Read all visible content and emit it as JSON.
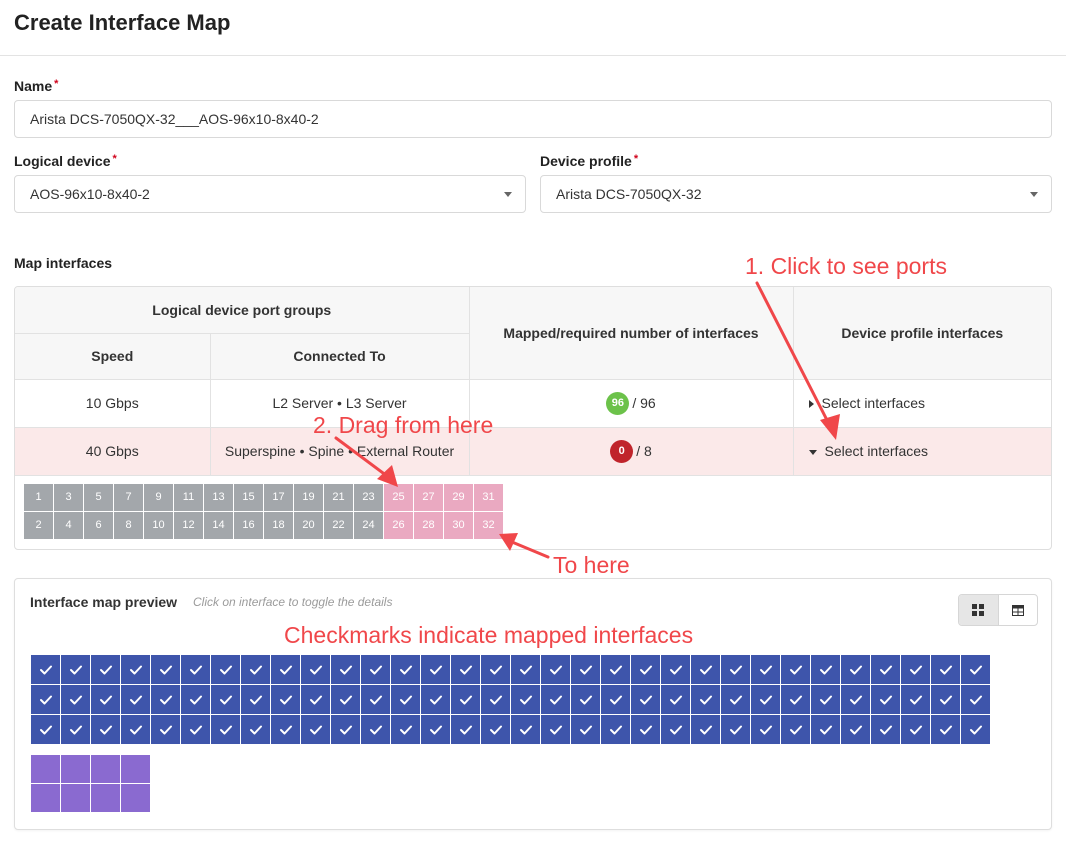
{
  "page": {
    "title": "Create Interface Map"
  },
  "form": {
    "required_mark": "*",
    "name": {
      "label": "Name",
      "value": "Arista DCS-7050QX-32___AOS-96x10-8x40-2"
    },
    "logical_device": {
      "label": "Logical device",
      "value": "AOS-96x10-8x40-2"
    },
    "device_profile": {
      "label": "Device profile",
      "value": "Arista DCS-7050QX-32"
    }
  },
  "map_interfaces": {
    "label": "Map interfaces",
    "headers": {
      "port_groups": "Logical device port groups",
      "speed": "Speed",
      "connected_to": "Connected To",
      "mapped_required": "Mapped/required number of interfaces",
      "device_profile_interfaces": "Device profile interfaces"
    },
    "rows": [
      {
        "speed": "10 Gbps",
        "connected_to": "L2 Server • L3 Server",
        "mapped": "96",
        "required": "/ 96",
        "select_label": "Select interfaces",
        "badge_color": "#6cc24a"
      },
      {
        "speed": "40 Gbps",
        "connected_to": "Superspine • Spine • External Router",
        "mapped": "0",
        "required": "/ 8",
        "select_label": "Select interfaces",
        "badge_color": "#c0242b"
      }
    ],
    "ports_top": [
      "1",
      "3",
      "5",
      "7",
      "9",
      "11",
      "13",
      "15",
      "17",
      "19",
      "21",
      "23",
      "25",
      "27",
      "29",
      "31"
    ],
    "ports_bottom": [
      "2",
      "4",
      "6",
      "8",
      "10",
      "12",
      "14",
      "16",
      "18",
      "20",
      "22",
      "24",
      "26",
      "28",
      "30",
      "32"
    ],
    "highlighted_ports": [
      "25",
      "26",
      "27",
      "28",
      "29",
      "30",
      "31",
      "32"
    ]
  },
  "preview": {
    "title": "Interface map preview",
    "hint": "Click on interface to toggle the details",
    "mapped_interface_count": 96,
    "unmapped_interface_count": 8,
    "view_toggle": {
      "grid_icon": "grid-view-icon",
      "table_icon": "table-view-icon"
    }
  },
  "annotations": {
    "click_ports": "1. Click to see ports",
    "drag_from": "2. Drag from here",
    "to_here": "To here",
    "checkmarks": "Checkmarks indicate mapped interfaces",
    "color": "#f0474a"
  },
  "colors": {
    "port_default": "#a3a7ab",
    "port_highlight": "#eaa9c1",
    "mapped_interface": "#3e55ab",
    "unmapped_interface": "#8a6ad0",
    "active_row": "#fbe9e9"
  }
}
